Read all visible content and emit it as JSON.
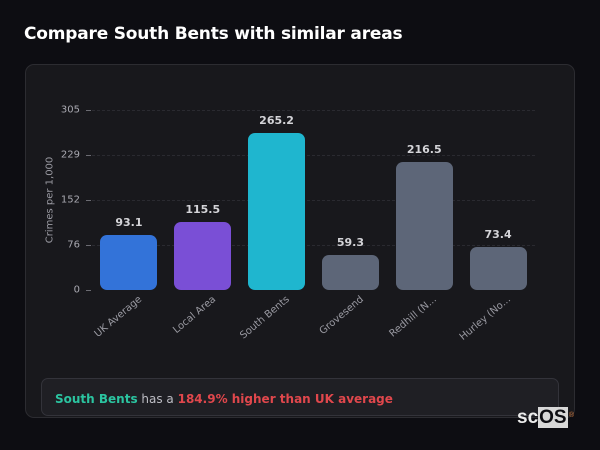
{
  "header": {
    "title": "Compare South Bents with similar areas"
  },
  "chart_data": {
    "type": "bar",
    "title": "Compare South Bents with similar areas",
    "xlabel": "",
    "ylabel": "Crimes per 1,000",
    "ylim": [
      0,
      305
    ],
    "yticks": [
      0,
      76,
      152,
      229,
      305
    ],
    "grid": true,
    "legend": "none",
    "categories": [
      "UK Average",
      "Local Area",
      "South Bents",
      "Grovesend",
      "Redhill (N...",
      "Hurley (No..."
    ],
    "values": [
      93.1,
      115.5,
      265.2,
      59.3,
      216.5,
      73.4
    ],
    "value_labels": [
      "93.1",
      "115.5",
      "265.2",
      "59.3",
      "216.5",
      "73.4"
    ],
    "colors": [
      "#3373d9",
      "#7a4fd6",
      "#1fb6cf",
      "#5d6678",
      "#5d6678",
      "#5d6678"
    ]
  },
  "insight": {
    "area_name": "South Bents",
    "connector": " has a ",
    "comparison": "184.9% higher than UK average"
  },
  "branding": {
    "logo_prefix": "sc",
    "logo_suffix": "OS",
    "registered_mark": "®"
  },
  "colors": {
    "background": "#0d0d12",
    "card": "#18181c",
    "highlight_teal": "#2bc4a0",
    "alert_red": "#e0474c"
  }
}
